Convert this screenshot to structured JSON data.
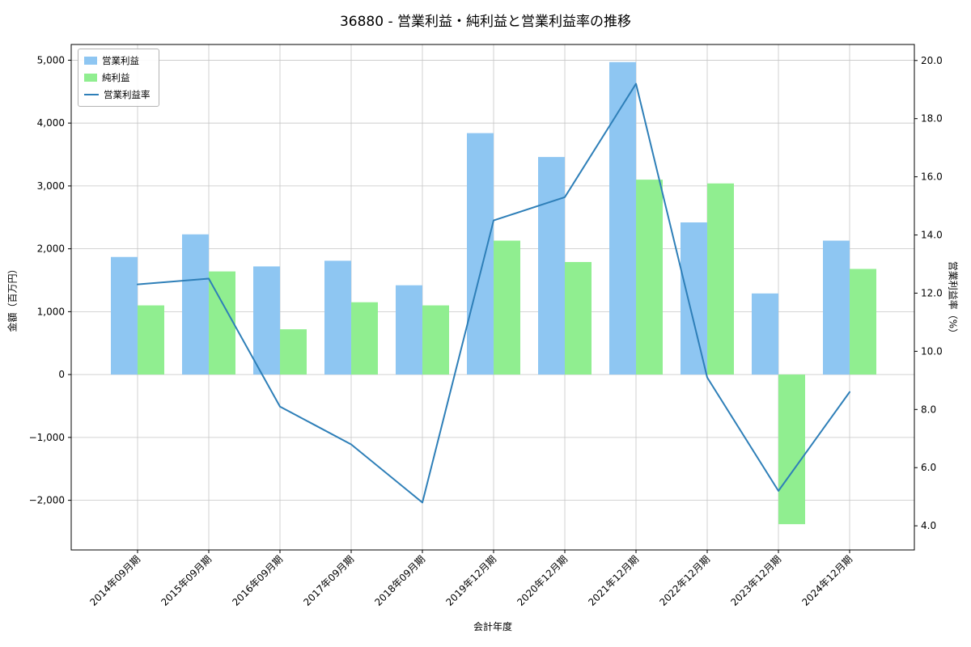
{
  "chart_data": {
    "type": "bar",
    "combo": "grouped bars + line on secondary axis",
    "title": "36880 - 営業利益・純利益と営業利益率の推移",
    "xlabel": "会計年度",
    "grid": true,
    "legend_position": "upper left",
    "categories": [
      "2014年09月期",
      "2015年09月期",
      "2016年09月期",
      "2017年09月期",
      "2018年09月期",
      "2019年12月期",
      "2020年12月期",
      "2021年12月期",
      "2022年12月期",
      "2023年12月期",
      "2024年12月期"
    ],
    "series": [
      {
        "name": "営業利益",
        "type": "bar",
        "axis": "left",
        "color": "#8ec6f2",
        "values": [
          1870,
          2230,
          1720,
          1810,
          1420,
          3840,
          3460,
          4970,
          2420,
          1290,
          2130
        ]
      },
      {
        "name": "純利益",
        "type": "bar",
        "axis": "left",
        "color": "#90ee90",
        "values": [
          1100,
          1640,
          720,
          1150,
          1100,
          2130,
          1790,
          3100,
          3040,
          -2380,
          1680
        ]
      },
      {
        "name": "営業利益率",
        "type": "line",
        "axis": "right",
        "color": "#2e7fb8",
        "values": [
          12.3,
          12.5,
          8.1,
          6.8,
          4.8,
          14.5,
          15.3,
          19.2,
          9.1,
          5.2,
          8.6
        ]
      }
    ],
    "left_axis": {
      "label": "金額（百万円）",
      "min": -2790,
      "max": 5250,
      "ticks": [
        {
          "v": 5000,
          "label": "5,000"
        },
        {
          "v": 4000,
          "label": "4,000"
        },
        {
          "v": 3000,
          "label": "3,000"
        },
        {
          "v": 2000,
          "label": "2,000"
        },
        {
          "v": 1000,
          "label": "1,000"
        },
        {
          "v": 0,
          "label": "0"
        },
        {
          "v": -1000,
          "label": "−1,000"
        },
        {
          "v": -2000,
          "label": "−2,000"
        }
      ]
    },
    "right_axis": {
      "label": "営業利益率（%）",
      "min": 3.17,
      "max": 20.55,
      "ticks": [
        {
          "v": 20.0,
          "label": "20.0"
        },
        {
          "v": 18.0,
          "label": "18.0"
        },
        {
          "v": 16.0,
          "label": "16.0"
        },
        {
          "v": 14.0,
          "label": "14.0"
        },
        {
          "v": 12.0,
          "label": "12.0"
        },
        {
          "v": 10.0,
          "label": "10.0"
        },
        {
          "v": 8.0,
          "label": "8.0"
        },
        {
          "v": 6.0,
          "label": "6.0"
        },
        {
          "v": 4.0,
          "label": "4.0"
        }
      ]
    }
  }
}
